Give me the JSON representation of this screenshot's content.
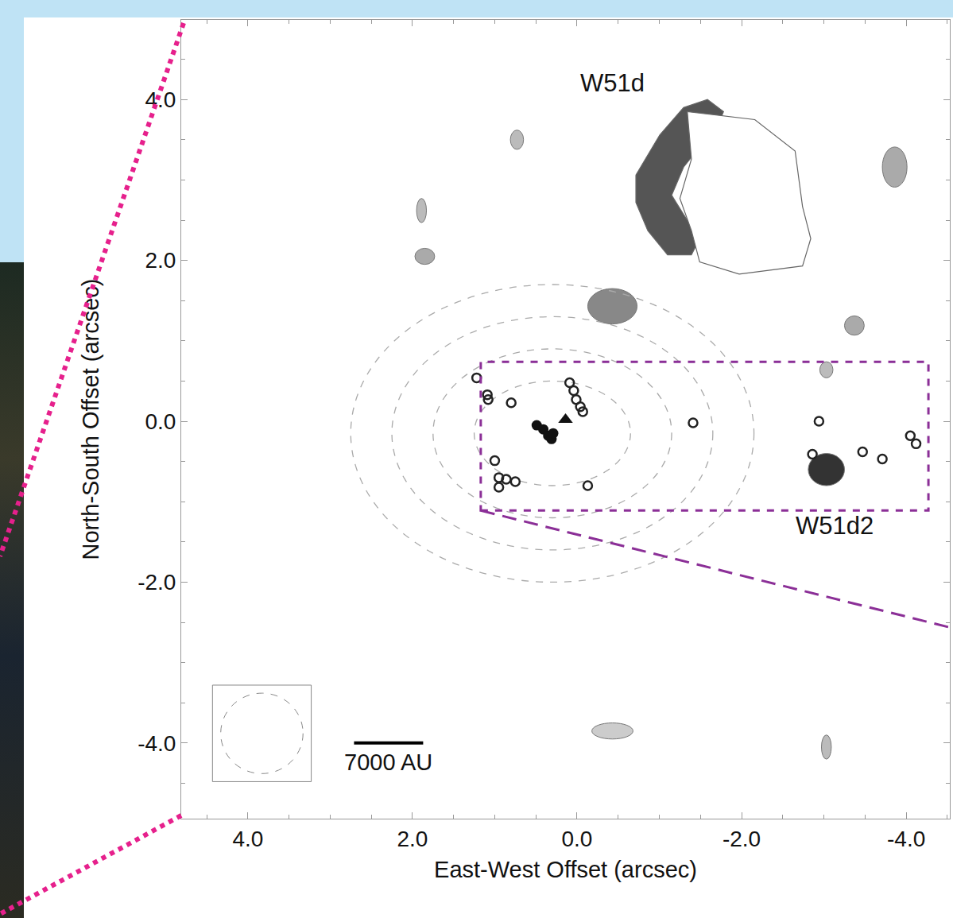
{
  "chart_data": {
    "type": "scatter",
    "x_label": "East-West Offset (arcsec)",
    "y_label": "North-South Offset (arcsec)",
    "xlim": [
      4.81,
      -4.53
    ],
    "ylim": [
      -4.94,
      4.99
    ],
    "xticks": [
      {
        "value": 4,
        "label": "4.0"
      },
      {
        "value": 2,
        "label": "2.0"
      },
      {
        "value": 0,
        "label": "0.0"
      },
      {
        "value": -2,
        "label": "-2.0"
      },
      {
        "value": -4,
        "label": "-4.0"
      }
    ],
    "yticks": [
      {
        "value": 4,
        "label": "4.0"
      },
      {
        "value": 2,
        "label": "2.0"
      },
      {
        "value": 0,
        "label": "0.0"
      },
      {
        "value": -2,
        "label": "-2.0"
      },
      {
        "value": -4,
        "label": "-4.0"
      }
    ],
    "grid": false,
    "series": [
      {
        "marker": "circle-open",
        "color": "#222222",
        "x": [
          1.22,
          1.09,
          1.08,
          0.8,
          0.09,
          0.04,
          0.01,
          -0.04,
          -0.07,
          -1.41,
          1.0,
          0.95,
          0.86,
          0.75,
          0.95,
          -0.13,
          -2.94,
          -2.86,
          -3.47,
          -3.71,
          -4.05,
          -4.12
        ],
        "values": [
          0.54,
          0.33,
          0.27,
          0.23,
          0.48,
          0.38,
          0.27,
          0.18,
          0.12,
          -0.02,
          -0.49,
          -0.7,
          -0.72,
          -0.75,
          -0.82,
          -0.8,
          0.0,
          -0.41,
          -0.38,
          -0.47,
          -0.18,
          -0.28
        ]
      },
      {
        "marker": "circle",
        "color": "#111111",
        "x": [
          0.49,
          0.41,
          0.35,
          0.31,
          0.29
        ],
        "values": [
          -0.05,
          -0.1,
          -0.18,
          -0.22,
          -0.15
        ]
      },
      {
        "marker": "triangle-up",
        "color": "#111111",
        "x": [
          0.14
        ],
        "values": [
          0.02
        ]
      }
    ],
    "annotations": [
      {
        "text": "W51d",
        "x": -0.43,
        "y": 4.2
      },
      {
        "text": "W51d2",
        "x": -3.13,
        "y": -1.3
      }
    ],
    "scale_bar": {
      "label": "7000 AU",
      "x": [
        2.71,
        1.87
      ],
      "y": -4.0
    },
    "beam": {
      "x": 3.83,
      "y": -3.88,
      "r": 0.5
    },
    "dashed_contours": [
      {
        "cx": 0.3,
        "cy": -0.15,
        "rx": 2.45,
        "ry": 1.85
      },
      {
        "cx": 0.3,
        "cy": -0.15,
        "rx": 1.95,
        "ry": 1.45
      },
      {
        "cx": 0.3,
        "cy": -0.15,
        "rx": 1.45,
        "ry": 1.05
      },
      {
        "cx": 0.3,
        "cy": -0.15,
        "rx": 0.95,
        "ry": 0.65
      }
    ],
    "regions": [
      {
        "color": "#555555",
        "x": [
          -0.715,
          -1.005,
          -1.295,
          -1.585,
          -1.78,
          -1.68,
          -1.49,
          -1.295,
          -1.15,
          -1.295,
          -1.49,
          -1.39,
          -1.1,
          -0.86,
          -0.715
        ],
        "y": [
          3.06,
          3.56,
          3.9,
          4.0,
          3.85,
          3.6,
          3.41,
          3.16,
          2.81,
          2.57,
          2.27,
          2.07,
          2.07,
          2.37,
          2.72
        ]
      },
      {
        "color": "#ffffff",
        "x": [
          -1.34,
          -2.16,
          -2.65,
          -2.74,
          -2.84,
          -2.74,
          -1.97,
          -1.49,
          -1.39,
          -1.25,
          -1.39
        ],
        "y": [
          3.85,
          3.75,
          3.36,
          2.67,
          2.27,
          1.93,
          1.83,
          1.98,
          2.37,
          2.77,
          3.26
        ]
      }
    ],
    "emission": [
      {
        "x": -0.43,
        "y": 1.43,
        "rx": 0.3,
        "ry": 0.22,
        "color": "#888888"
      },
      {
        "x": -3.03,
        "y": -0.6,
        "rx": 0.22,
        "ry": 0.2,
        "color": "#333333"
      },
      {
        "x": 1.85,
        "y": 2.05,
        "rx": 0.12,
        "ry": 0.1,
        "color": "#aaaaaa"
      },
      {
        "x": 1.89,
        "y": 2.62,
        "rx": 0.06,
        "ry": 0.15,
        "color": "#bbbbbb"
      },
      {
        "x": 0.73,
        "y": 3.5,
        "rx": 0.08,
        "ry": 0.12,
        "color": "#bbbbbb"
      },
      {
        "x": -3.37,
        "y": 1.19,
        "rx": 0.12,
        "ry": 0.12,
        "color": "#aaaaaa"
      },
      {
        "x": -3.86,
        "y": 3.16,
        "rx": 0.15,
        "ry": 0.25,
        "color": "#aaaaaa"
      },
      {
        "x": -3.03,
        "y": 0.64,
        "rx": 0.08,
        "ry": 0.1,
        "color": "#bbbbbb"
      },
      {
        "x": -3.03,
        "y": -4.05,
        "rx": 0.06,
        "ry": 0.15,
        "color": "#bbbbbb"
      },
      {
        "x": -0.43,
        "y": -3.85,
        "rx": 0.25,
        "ry": 0.1,
        "color": "#cccccc"
      }
    ],
    "inset_box": {
      "xlim": [
        1.17,
        -4.27
      ],
      "ylim": [
        -1.11,
        0.74
      ],
      "color": "#8b2f97"
    }
  }
}
